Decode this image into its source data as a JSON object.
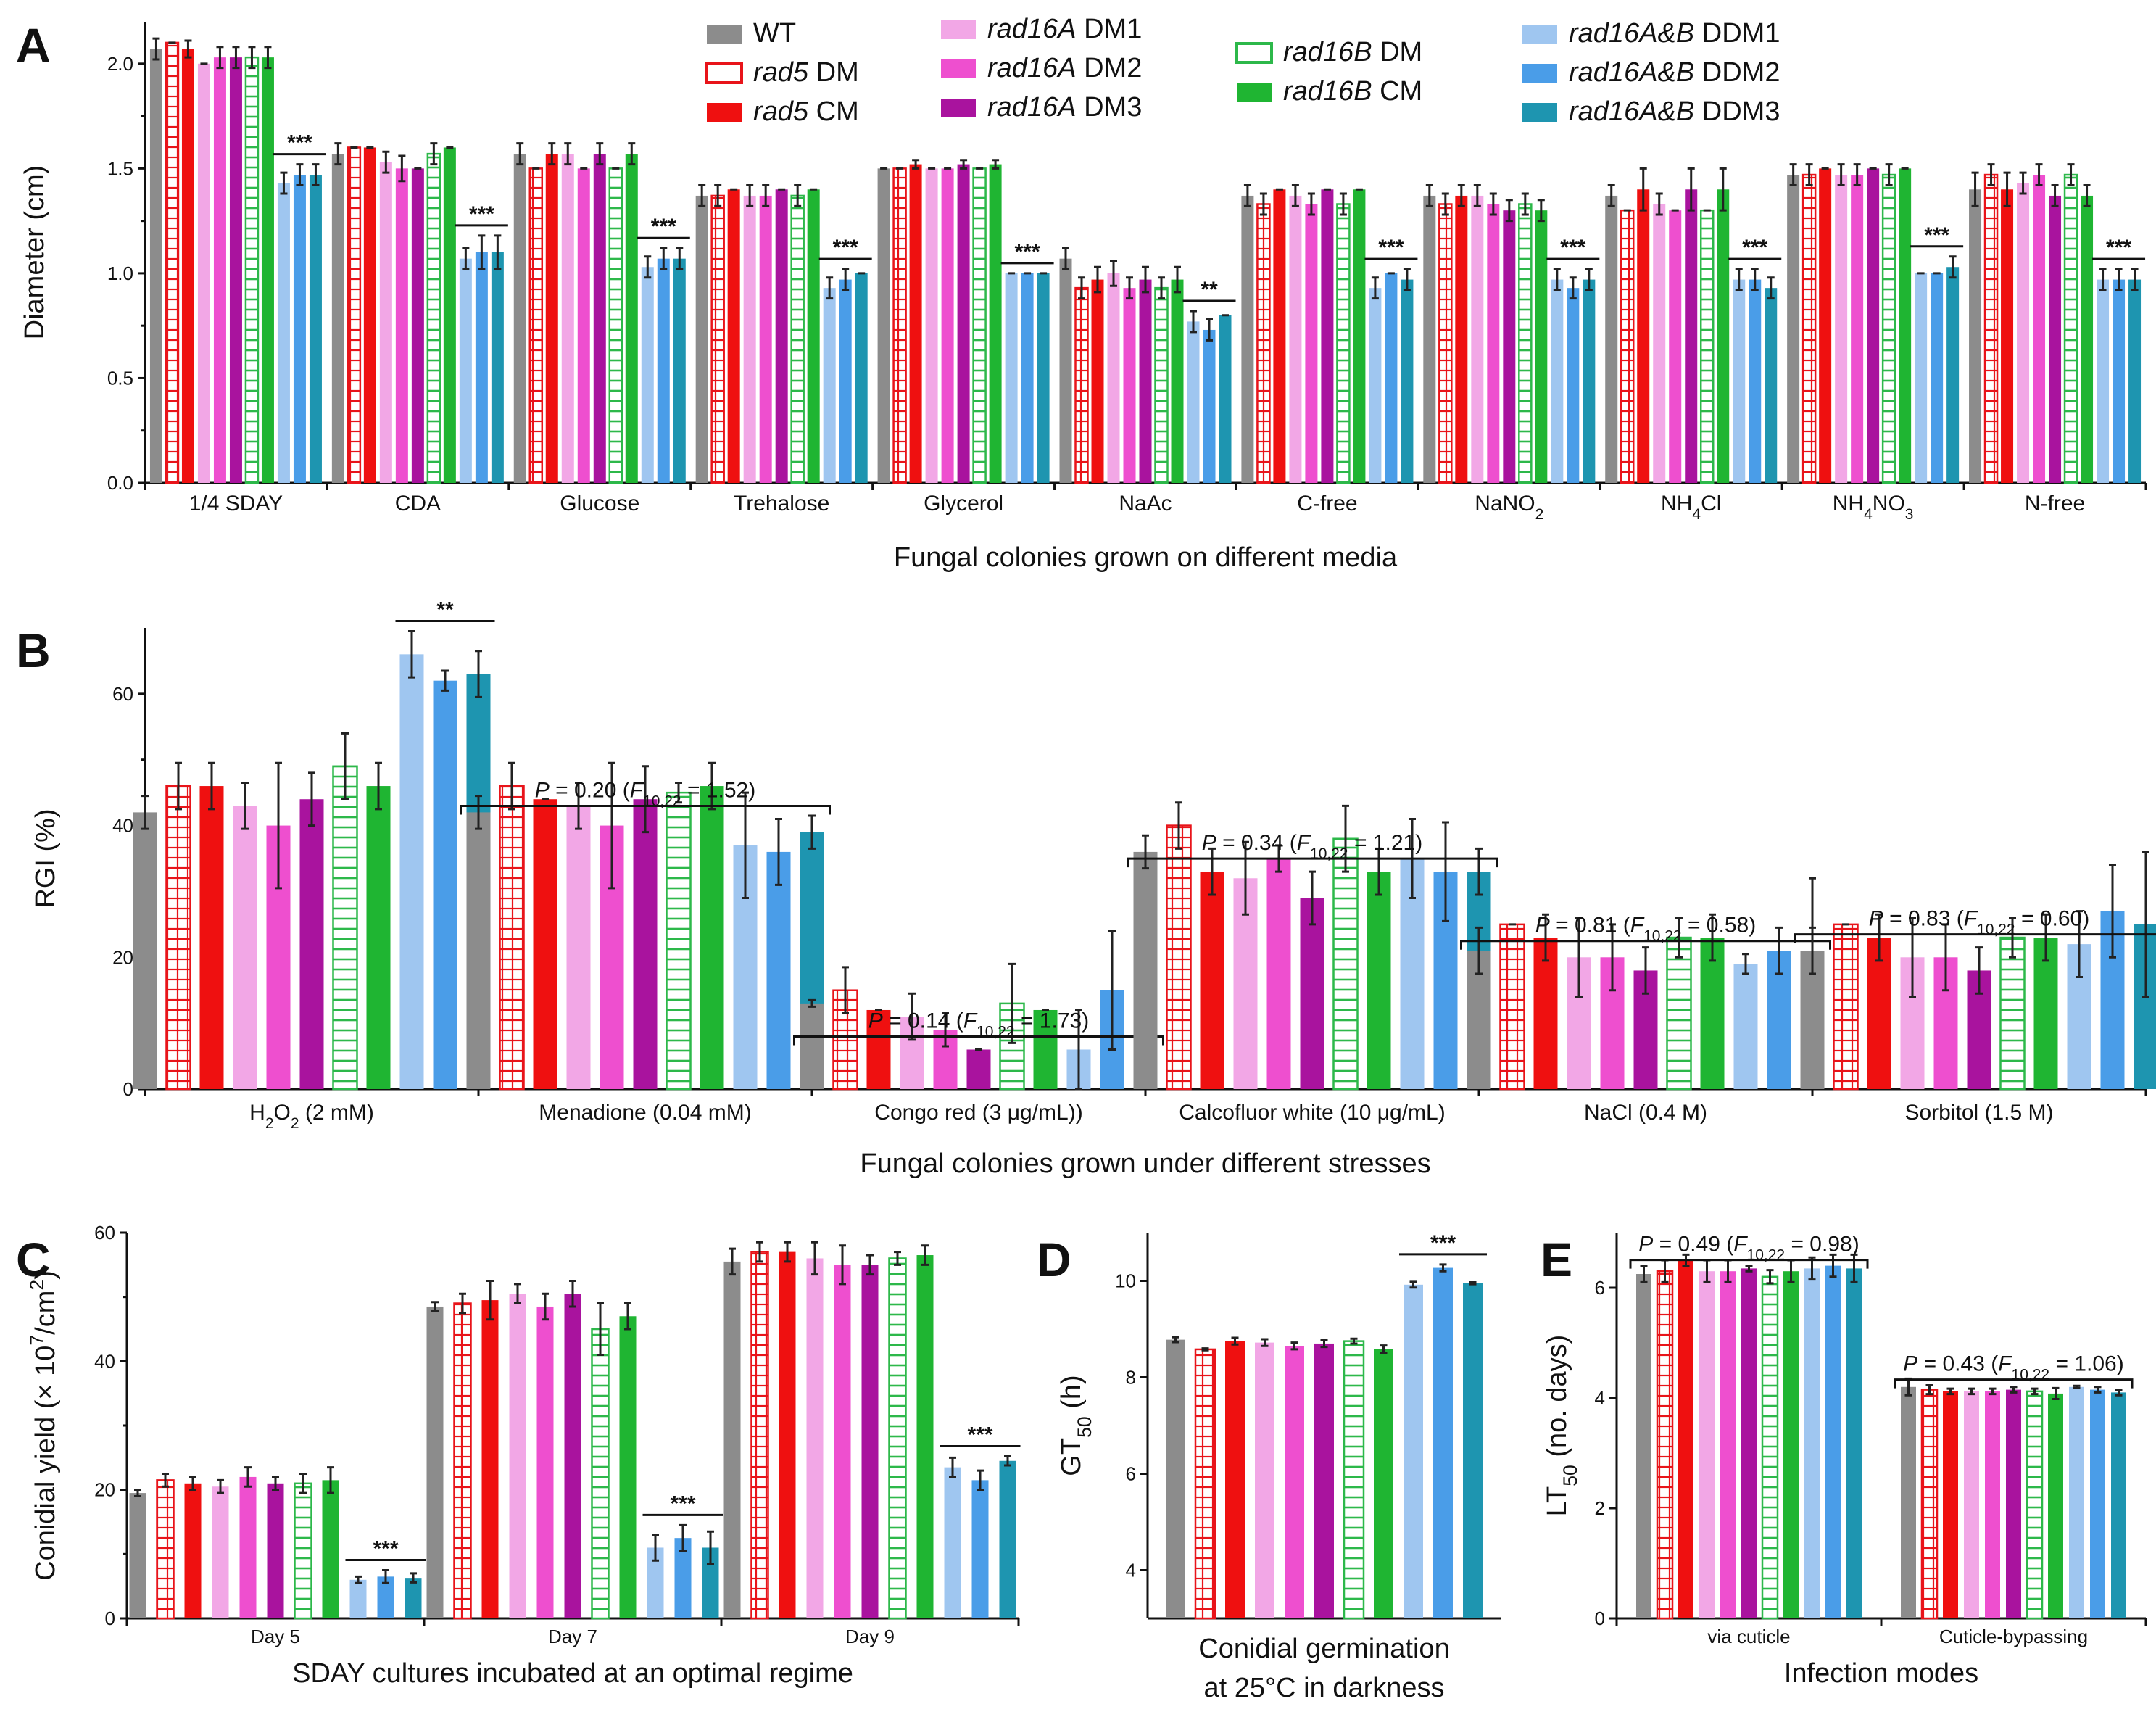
{
  "strains": [
    {
      "label": "WT",
      "gene": "",
      "suffix": "WT",
      "color": "#8c8c8c",
      "style": "solid"
    },
    {
      "label": "rad5 DM",
      "gene": "rad5",
      "suffix": " DM",
      "color": "#e8141a",
      "style": "hatch"
    },
    {
      "label": "rad5 CM",
      "gene": "rad5",
      "suffix": " CM",
      "color": "#ef1010",
      "style": "solid"
    },
    {
      "label": "rad16A DM1",
      "gene": "rad16A",
      "suffix": " DM1",
      "color": "#f2a7e6",
      "style": "solid"
    },
    {
      "label": "rad16A DM2",
      "gene": "rad16A",
      "suffix": " DM2",
      "color": "#ee4fcf",
      "style": "solid"
    },
    {
      "label": "rad16A DM3",
      "gene": "rad16A",
      "suffix": " DM3",
      "color": "#a9139e",
      "style": "solid"
    },
    {
      "label": "rad16B DM",
      "gene": "rad16B",
      "suffix": " DM",
      "color": "#2db84a",
      "style": "hatch"
    },
    {
      "label": "rad16B CM",
      "gene": "rad16B",
      "suffix": " CM",
      "color": "#1fb532",
      "style": "solid"
    },
    {
      "label": "rad16A&B DDM1",
      "gene": "rad16A&B",
      "suffix": " DDM1",
      "color": "#9fc6f0",
      "style": "solid"
    },
    {
      "label": "rad16A&B DDM2",
      "gene": "rad16A&B",
      "suffix": " DDM2",
      "color": "#4a9de8",
      "style": "solid"
    },
    {
      "label": "rad16A&B DDM3",
      "gene": "rad16A&B",
      "suffix": " DDM3",
      "color": "#1e95b0",
      "style": "solid"
    }
  ],
  "chart_data": [
    {
      "panel": "A",
      "type": "bar",
      "xlabel": "Fungal colonies grown on different media",
      "ylabel": "Diameter (cm)",
      "ylim": [
        0,
        2.2
      ],
      "yticks": [
        "0.0",
        "0.5",
        "1.0",
        "1.5",
        "2.0"
      ],
      "ytick_values": [
        0,
        0.5,
        1.0,
        1.5,
        2.0
      ],
      "categories": [
        "1/4 SDAY",
        "CDA",
        "Glucose",
        "Trehalose",
        "Glycerol",
        "NaAc",
        "C-free",
        "NaNO2",
        "NH4Cl",
        "NH4NO3",
        "N-free"
      ],
      "values": [
        [
          2.07,
          2.1,
          2.07,
          2.0,
          2.03,
          2.03,
          2.03,
          2.03,
          1.43,
          1.47,
          1.47
        ],
        [
          1.57,
          1.6,
          1.6,
          1.53,
          1.5,
          1.5,
          1.57,
          1.6,
          1.07,
          1.1,
          1.1
        ],
        [
          1.57,
          1.5,
          1.57,
          1.57,
          1.5,
          1.57,
          1.5,
          1.57,
          1.03,
          1.07,
          1.07
        ],
        [
          1.37,
          1.37,
          1.4,
          1.37,
          1.37,
          1.4,
          1.37,
          1.4,
          0.93,
          0.97,
          1.0
        ],
        [
          1.5,
          1.5,
          1.52,
          1.5,
          1.5,
          1.52,
          1.5,
          1.52,
          1.0,
          1.0,
          1.0
        ],
        [
          1.07,
          0.93,
          0.97,
          1.0,
          0.93,
          0.97,
          0.93,
          0.97,
          0.77,
          0.73,
          0.8
        ],
        [
          1.37,
          1.33,
          1.4,
          1.37,
          1.33,
          1.4,
          1.33,
          1.4,
          0.93,
          1.0,
          0.97
        ],
        [
          1.37,
          1.33,
          1.37,
          1.37,
          1.33,
          1.3,
          1.33,
          1.3,
          0.97,
          0.93,
          0.97
        ],
        [
          1.37,
          1.3,
          1.4,
          1.33,
          1.3,
          1.4,
          1.3,
          1.4,
          0.97,
          0.97,
          0.93
        ],
        [
          1.47,
          1.47,
          1.5,
          1.47,
          1.47,
          1.5,
          1.47,
          1.5,
          1.0,
          1.0,
          1.03
        ],
        [
          1.4,
          1.47,
          1.4,
          1.43,
          1.47,
          1.37,
          1.47,
          1.37,
          0.97,
          0.97,
          0.97
        ]
      ],
      "errors": [
        [
          0.05,
          0.0,
          0.04,
          0.0,
          0.05,
          0.05,
          0.05,
          0.05,
          0.05,
          0.05,
          0.05
        ],
        [
          0.05,
          0.0,
          0.0,
          0.05,
          0.06,
          0.0,
          0.05,
          0.0,
          0.05,
          0.08,
          0.08
        ],
        [
          0.05,
          0.0,
          0.05,
          0.05,
          0.0,
          0.05,
          0.0,
          0.05,
          0.05,
          0.05,
          0.05
        ],
        [
          0.05,
          0.05,
          0.0,
          0.05,
          0.05,
          0.0,
          0.05,
          0.0,
          0.05,
          0.05,
          0.0
        ],
        [
          0.0,
          0.0,
          0.02,
          0.0,
          0.0,
          0.02,
          0.0,
          0.02,
          0.0,
          0.0,
          0.0
        ],
        [
          0.05,
          0.05,
          0.06,
          0.06,
          0.05,
          0.06,
          0.05,
          0.06,
          0.05,
          0.05,
          0.0
        ],
        [
          0.05,
          0.05,
          0.0,
          0.05,
          0.05,
          0.0,
          0.05,
          0.0,
          0.05,
          0.0,
          0.05
        ],
        [
          0.05,
          0.05,
          0.05,
          0.05,
          0.05,
          0.05,
          0.05,
          0.05,
          0.05,
          0.05,
          0.05
        ],
        [
          0.05,
          0.0,
          0.1,
          0.05,
          0.0,
          0.1,
          0.0,
          0.1,
          0.05,
          0.05,
          0.05
        ],
        [
          0.05,
          0.05,
          0.0,
          0.05,
          0.05,
          0.0,
          0.05,
          0.0,
          0.0,
          0.0,
          0.05
        ],
        [
          0.08,
          0.05,
          0.08,
          0.05,
          0.05,
          0.05,
          0.05,
          0.05,
          0.05,
          0.05,
          0.05
        ]
      ],
      "annotations": [
        "***",
        "***",
        "***",
        "***",
        "***",
        "**",
        "***",
        "***",
        "***",
        "***",
        "***"
      ]
    },
    {
      "panel": "B",
      "type": "bar",
      "xlabel": "Fungal colonies grown under different stresses",
      "ylabel": "RGI (%)",
      "ylim": [
        0,
        70
      ],
      "yticks": [
        "0",
        "20",
        "40",
        "60"
      ],
      "ytick_values": [
        0,
        20,
        40,
        60
      ],
      "categories": [
        "H2O2 (2 mM)",
        "Menadione (0.04 mM)",
        "Congo red (3 μg/mL))",
        "Calcofluor white (10 μg/mL)",
        "NaCl (0.4 M)",
        "Sorbitol (1.5 M)"
      ],
      "values": [
        [
          42,
          46,
          46,
          43,
          40,
          44,
          49,
          46,
          66,
          62,
          63
        ],
        [
          42,
          46,
          44,
          43,
          40,
          44,
          45,
          46,
          37,
          36,
          39
        ],
        [
          13,
          15,
          12,
          11,
          9,
          6,
          13,
          12,
          6,
          15,
          15
        ],
        [
          36,
          40,
          33,
          32,
          35,
          29,
          38,
          33,
          35,
          33,
          33
        ],
        [
          21,
          25,
          23,
          20,
          20,
          18,
          23,
          23,
          19,
          21,
          20
        ],
        [
          21,
          25,
          23,
          20,
          20,
          18,
          23,
          23,
          22,
          27,
          25
        ]
      ],
      "errors": [
        [
          2.5,
          3.5,
          3.5,
          3.5,
          9.5,
          4.0,
          5.0,
          3.5,
          3.5,
          1.5,
          3.5
        ],
        [
          2.5,
          3.5,
          0.0,
          3.5,
          9.5,
          5.0,
          1.5,
          3.5,
          8.0,
          5.0,
          2.5
        ],
        [
          0.5,
          3.5,
          0.0,
          3.5,
          2.5,
          0.0,
          6.0,
          0.0,
          6.0,
          9.0,
          4.5
        ],
        [
          2.5,
          3.5,
          3.5,
          5.5,
          2.0,
          4.0,
          5.0,
          3.5,
          6.0,
          7.5,
          3.5
        ],
        [
          3.5,
          0.0,
          3.5,
          6.0,
          5.0,
          3.5,
          3.0,
          3.5,
          1.5,
          3.5,
          12.0
        ],
        [
          3.5,
          0.0,
          3.5,
          6.0,
          5.0,
          3.5,
          3.0,
          3.5,
          5.0,
          7.0,
          11.0
        ]
      ],
      "annotations": [
        "**",
        "P = 0.20 (F10,22 = 1.52)",
        "P = 0.14 (F10,22 = 1.73)",
        "P = 0.34 (F10,22 = 1.21)",
        "P = 0.81 (F10,22 = 0.58)",
        "P = 0.83 (F10,22 = 0.60)"
      ]
    },
    {
      "panel": "C",
      "type": "bar",
      "xlabel": "SDAY cultures incubated at an optimal regime",
      "ylabel": "Conidial yield (× 10^7/cm^2)",
      "ylim": [
        0,
        60
      ],
      "yticks": [
        "0",
        "20",
        "40",
        "60"
      ],
      "ytick_values": [
        0,
        20,
        40,
        60
      ],
      "categories": [
        "Day 5",
        "Day 7",
        "Day 9"
      ],
      "values": [
        [
          19.5,
          21.5,
          21,
          20.5,
          22,
          21,
          21,
          21.5,
          6,
          6.5,
          6.3
        ],
        [
          48.5,
          49,
          49.5,
          50.5,
          48.5,
          50.5,
          45,
          47,
          11,
          12.5,
          11
        ],
        [
          55.5,
          57,
          57,
          56,
          55,
          55,
          56,
          56.5,
          23.5,
          21.5,
          24.5
        ]
      ],
      "errors": [
        [
          0.5,
          1.0,
          1.0,
          1.0,
          1.5,
          1.0,
          1.5,
          2.0,
          0.5,
          1.0,
          0.7
        ],
        [
          0.7,
          1.5,
          3.0,
          1.5,
          2.0,
          2.0,
          4.0,
          2.0,
          2.0,
          2.0,
          2.5
        ],
        [
          2.0,
          1.5,
          1.5,
          2.5,
          3.0,
          1.5,
          1.0,
          1.5,
          1.5,
          1.5,
          0.7
        ]
      ],
      "annotations": [
        "***",
        "***",
        "***"
      ]
    },
    {
      "panel": "D",
      "type": "bar",
      "xlabel": "Conidial germination at 25°C in darkness",
      "xlabel_lines": [
        "Conidial germination",
        "at 25°C in darkness"
      ],
      "ylabel": "GT50 (h)",
      "ylim": [
        3,
        11
      ],
      "yticks": [
        "4",
        "6",
        "8",
        "10"
      ],
      "ytick_values": [
        4,
        6,
        8,
        10
      ],
      "categories": [
        ""
      ],
      "values": [
        [
          8.78,
          8.58,
          8.75,
          8.72,
          8.65,
          8.7,
          8.75,
          8.58,
          9.92,
          10.27,
          9.95
        ]
      ],
      "errors": [
        [
          0.05,
          0.02,
          0.07,
          0.07,
          0.07,
          0.07,
          0.05,
          0.08,
          0.06,
          0.07,
          0.02
        ]
      ],
      "annotations": [
        "***"
      ]
    },
    {
      "panel": "E",
      "type": "bar",
      "xlabel": "Infection modes",
      "ylabel": "LT50 (no. days)",
      "ylim": [
        0,
        7
      ],
      "yticks": [
        "0",
        "2",
        "4",
        "6"
      ],
      "ytick_values": [
        0,
        2,
        4,
        6
      ],
      "categories": [
        "via cuticle",
        "Cuticle-bypassing"
      ],
      "values": [
        [
          6.25,
          6.3,
          6.5,
          6.3,
          6.3,
          6.35,
          6.2,
          6.3,
          6.35,
          6.4,
          6.35
        ],
        [
          4.2,
          4.15,
          4.12,
          4.12,
          4.12,
          4.15,
          4.12,
          4.08,
          4.2,
          4.15,
          4.1
        ]
      ],
      "errors": [
        [
          0.15,
          0.2,
          0.1,
          0.2,
          0.2,
          0.05,
          0.12,
          0.2,
          0.2,
          0.2,
          0.25
        ],
        [
          0.15,
          0.08,
          0.05,
          0.05,
          0.05,
          0.05,
          0.05,
          0.1,
          0.02,
          0.05,
          0.05
        ]
      ],
      "annotations": [
        "P = 0.49 (F10,22 = 0.98)",
        "P = 0.43 (F10,22 = 1.06)"
      ]
    }
  ]
}
